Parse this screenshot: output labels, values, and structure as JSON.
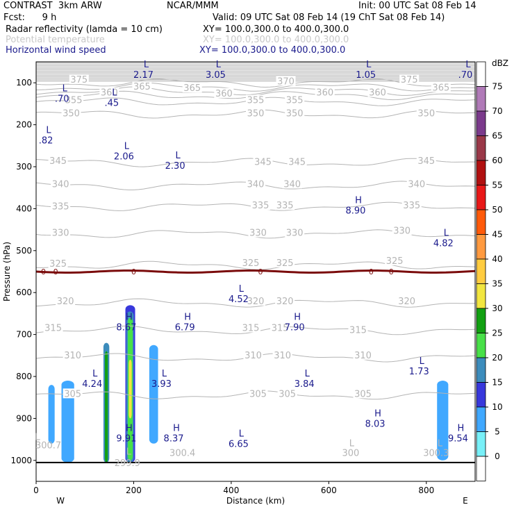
{
  "header": {
    "line1_left": "CONTRAST  3km ARW",
    "line1_mid": "NCAR/MMM",
    "line1_right": "Init: 00 UTC Sat 08 Feb 14",
    "line2_left": "Fcst:      9 h",
    "line2_right": "Valid: 09 UTC Sat 08 Feb 14 (19 ChT Sat 08 Feb 14)",
    "fields": [
      {
        "label": "Radar reflectivity (lamda = 10 cm)",
        "xy": "XY= 100.0,300.0 to 400.0,300.0",
        "color": "#000000"
      },
      {
        "label": "Potential temperature",
        "xy": "XY= 100.0,300.0 to 400.0,300.0",
        "color": "#c8c8c8"
      },
      {
        "label": "Horizontal wind speed",
        "xy": "XY= 100.0,300.0 to 400.0,300.0",
        "color": "#1a1a8c"
      }
    ]
  },
  "colors": {
    "theta": "#b4b4b4",
    "wind": "#1a1a8c",
    "freezing": "#7a0a0a",
    "ground": "#000000"
  },
  "chart_data": {
    "type": "cross-section",
    "xlabel": "Distance (km)",
    "ylabel": "Pressure (hPa)",
    "xlim": [
      0,
      900
    ],
    "ylim": [
      1050,
      50
    ],
    "xticks": [
      0,
      200,
      400,
      600,
      800
    ],
    "yticks": [
      100,
      200,
      300,
      400,
      500,
      600,
      700,
      800,
      900,
      1000
    ],
    "x_end_labels": {
      "left": "W",
      "right": "E"
    },
    "theta_isentropes": [
      {
        "value": 375,
        "p": 100
      },
      {
        "value": 370,
        "p": 110
      },
      {
        "value": 365,
        "p": 120
      },
      {
        "value": 360,
        "p": 130
      },
      {
        "value": 355,
        "p": 145
      },
      {
        "value": 350,
        "p": 175
      },
      {
        "value": 345,
        "p": 290
      },
      {
        "value": 340,
        "p": 345
      },
      {
        "value": 335,
        "p": 395
      },
      {
        "value": 330,
        "p": 460
      },
      {
        "value": 325,
        "p": 535
      },
      {
        "value": 320,
        "p": 625
      },
      {
        "value": 315,
        "p": 690
      },
      {
        "value": 310,
        "p": 755
      },
      {
        "value": 305,
        "p": 845
      }
    ],
    "theta_labels": [
      {
        "text": "375",
        "x": 88,
        "p": 93
      },
      {
        "text": "370",
        "x": 512,
        "p": 97
      },
      {
        "text": "375",
        "x": 765,
        "p": 93
      },
      {
        "text": "365",
        "x": 217,
        "p": 110
      },
      {
        "text": "365",
        "x": 320,
        "p": 113
      },
      {
        "text": "365",
        "x": 830,
        "p": 112
      },
      {
        "text": "360",
        "x": 150,
        "p": 124
      },
      {
        "text": "360",
        "x": 385,
        "p": 126
      },
      {
        "text": "360",
        "x": 592,
        "p": 124
      },
      {
        "text": "360",
        "x": 700,
        "p": 124
      },
      {
        "text": "355",
        "x": 77,
        "p": 142
      },
      {
        "text": "355",
        "x": 450,
        "p": 142
      },
      {
        "text": "355",
        "x": 530,
        "p": 142
      },
      {
        "text": "350",
        "x": 72,
        "p": 173
      },
      {
        "text": "350",
        "x": 450,
        "p": 173
      },
      {
        "text": "350",
        "x": 530,
        "p": 173
      },
      {
        "text": "350",
        "x": 800,
        "p": 173
      },
      {
        "text": "345",
        "x": 45,
        "p": 287
      },
      {
        "text": "345",
        "x": 465,
        "p": 289
      },
      {
        "text": "345",
        "x": 535,
        "p": 289
      },
      {
        "text": "345",
        "x": 800,
        "p": 287
      },
      {
        "text": "340",
        "x": 50,
        "p": 342
      },
      {
        "text": "340",
        "x": 450,
        "p": 342
      },
      {
        "text": "340",
        "x": 525,
        "p": 342
      },
      {
        "text": "340",
        "x": 780,
        "p": 342
      },
      {
        "text": "335",
        "x": 50,
        "p": 395
      },
      {
        "text": "335",
        "x": 460,
        "p": 393
      },
      {
        "text": "335",
        "x": 510,
        "p": 393
      },
      {
        "text": "335",
        "x": 770,
        "p": 393
      },
      {
        "text": "330",
        "x": 50,
        "p": 458
      },
      {
        "text": "330",
        "x": 455,
        "p": 458
      },
      {
        "text": "330",
        "x": 530,
        "p": 458
      },
      {
        "text": "330",
        "x": 750,
        "p": 453
      },
      {
        "text": "325",
        "x": 45,
        "p": 532
      },
      {
        "text": "325",
        "x": 440,
        "p": 530
      },
      {
        "text": "325",
        "x": 510,
        "p": 530
      },
      {
        "text": "325",
        "x": 735,
        "p": 525
      },
      {
        "text": "320",
        "x": 60,
        "p": 621
      },
      {
        "text": "320",
        "x": 450,
        "p": 621
      },
      {
        "text": "320",
        "x": 510,
        "p": 621
      },
      {
        "text": "320",
        "x": 760,
        "p": 621
      },
      {
        "text": "315",
        "x": 35,
        "p": 685
      },
      {
        "text": "315",
        "x": 440,
        "p": 685
      },
      {
        "text": "315",
        "x": 500,
        "p": 685
      },
      {
        "text": "315",
        "x": 660,
        "p": 690
      },
      {
        "text": "310",
        "x": 75,
        "p": 750
      },
      {
        "text": "310",
        "x": 445,
        "p": 750
      },
      {
        "text": "310",
        "x": 505,
        "p": 750
      },
      {
        "text": "310",
        "x": 670,
        "p": 750
      },
      {
        "text": "305",
        "x": 75,
        "p": 842
      },
      {
        "text": "305",
        "x": 455,
        "p": 842
      },
      {
        "text": "305",
        "x": 515,
        "p": 842
      },
      {
        "text": "305",
        "x": 670,
        "p": 842
      }
    ],
    "surface_theta_labels": [
      {
        "text": "300.7",
        "x": 25,
        "p": 965
      },
      {
        "text": "299.9",
        "x": 187,
        "p": 1007
      },
      {
        "text": "300.4",
        "x": 300,
        "p": 983
      },
      {
        "text": "300",
        "x": 645,
        "p": 983
      },
      {
        "text": "300.3",
        "x": 820,
        "p": 983
      }
    ],
    "surface_theta_markers": [
      {
        "text": "L",
        "x": 3,
        "p": 945
      },
      {
        "text": "L",
        "x": 190,
        "p": 980
      },
      {
        "text": "L",
        "x": 647,
        "p": 960
      },
      {
        "text": "L",
        "x": 828,
        "p": 960
      }
    ],
    "freezing_level": {
      "label": "0",
      "p": 550,
      "label_x": [
        15,
        40,
        200,
        460,
        687,
        728
      ]
    },
    "wind_extrema": [
      {
        "type": "L",
        "value": "2.17",
        "x": 220,
        "p": 73
      },
      {
        "type": "L",
        "value": "3.05",
        "x": 368,
        "p": 73
      },
      {
        "type": "L",
        "value": "1.05",
        "x": 676,
        "p": 73
      },
      {
        "type": "L",
        "value": ".70",
        "x": 880,
        "p": 73
      },
      {
        "type": "L",
        "value": ".70",
        "x": 53,
        "p": 130
      },
      {
        "type": "L",
        "value": ".45",
        "x": 155,
        "p": 140
      },
      {
        "type": "L",
        "value": ".82",
        "x": 20,
        "p": 230
      },
      {
        "type": "L",
        "value": "2.06",
        "x": 180,
        "p": 268
      },
      {
        "type": "L",
        "value": "2.30",
        "x": 285,
        "p": 290
      },
      {
        "type": "H",
        "value": "8.90",
        "x": 655,
        "p": 397
      },
      {
        "type": "L",
        "value": "4.82",
        "x": 835,
        "p": 475
      },
      {
        "type": "L",
        "value": "4.52",
        "x": 415,
        "p": 608
      },
      {
        "type": "H",
        "value": "8.67",
        "x": 185,
        "p": 675
      },
      {
        "type": "H",
        "value": "6.79",
        "x": 305,
        "p": 675
      },
      {
        "type": "H",
        "value": "7.90",
        "x": 530,
        "p": 675
      },
      {
        "type": "L",
        "value": "1.73",
        "x": 785,
        "p": 780
      },
      {
        "type": "L",
        "value": "4.24",
        "x": 115,
        "p": 810
      },
      {
        "type": "L",
        "value": "3.93",
        "x": 257,
        "p": 810
      },
      {
        "type": "L",
        "value": "3.84",
        "x": 550,
        "p": 810
      },
      {
        "type": "H",
        "value": "8.03",
        "x": 695,
        "p": 905
      },
      {
        "type": "H",
        "value": "9.91",
        "x": 185,
        "p": 940
      },
      {
        "type": "H",
        "value": "8.37",
        "x": 282,
        "p": 940
      },
      {
        "type": "L",
        "value": "6.65",
        "x": 415,
        "p": 953
      },
      {
        "type": "H",
        "value": "9.54",
        "x": 865,
        "p": 940
      }
    ],
    "reflectivity_cells": [
      {
        "x": [
          25,
          38
        ],
        "p": [
          820,
          960
        ],
        "dbz": 7
      },
      {
        "x": [
          52,
          78
        ],
        "p": [
          810,
          1005
        ],
        "dbz": 7
      },
      {
        "x": [
          138,
          150
        ],
        "p": [
          720,
          1005
        ],
        "dbz": 15
      },
      {
        "x": [
          141,
          147
        ],
        "p": [
          740,
          1005
        ],
        "dbz": 25
      },
      {
        "x": [
          183,
          203
        ],
        "p": [
          630,
          1005
        ],
        "dbz": 12
      },
      {
        "x": [
          185,
          200
        ],
        "p": [
          645,
          1005
        ],
        "dbz": 17
      },
      {
        "x": [
          188,
          198
        ],
        "p": [
          660,
          1000
        ],
        "dbz": 22
      },
      {
        "x": [
          190,
          196
        ],
        "p": [
          760,
          900
        ],
        "dbz": 32
      },
      {
        "x": [
          232,
          250
        ],
        "p": [
          725,
          960
        ],
        "dbz": 7
      },
      {
        "x": [
          822,
          845
        ],
        "p": [
          810,
          1000
        ],
        "dbz": 7
      }
    ],
    "colorbar": {
      "unit": "dBZ",
      "levels": [
        75,
        70,
        65,
        60,
        55,
        50,
        45,
        40,
        35,
        30,
        25,
        20,
        15,
        10,
        5,
        0
      ],
      "colors": [
        "#ffffff",
        "#b07ab8",
        "#7b3a8c",
        "#9a3848",
        "#b01010",
        "#e81818",
        "#ff5a0a",
        "#ff9a40",
        "#ffcc40",
        "#f2e640",
        "#12a012",
        "#48e048",
        "#3c8cbc",
        "#3838dc",
        "#40a8ff",
        "#78f0f8",
        "#ffffff"
      ]
    }
  }
}
